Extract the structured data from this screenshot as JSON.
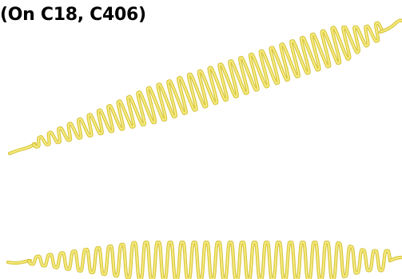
{
  "caption": "(On C18, C406)",
  "colors": {
    "stitch_main": "#e8d84a",
    "stitch_highlight": "#fbf3a6",
    "stitch_shadow": "#c9b62a"
  },
  "patterns": [
    {
      "name": "diagonal-satin-zigzag-stitch"
    },
    {
      "name": "horizontal-satin-zigzag-stitch"
    }
  ]
}
